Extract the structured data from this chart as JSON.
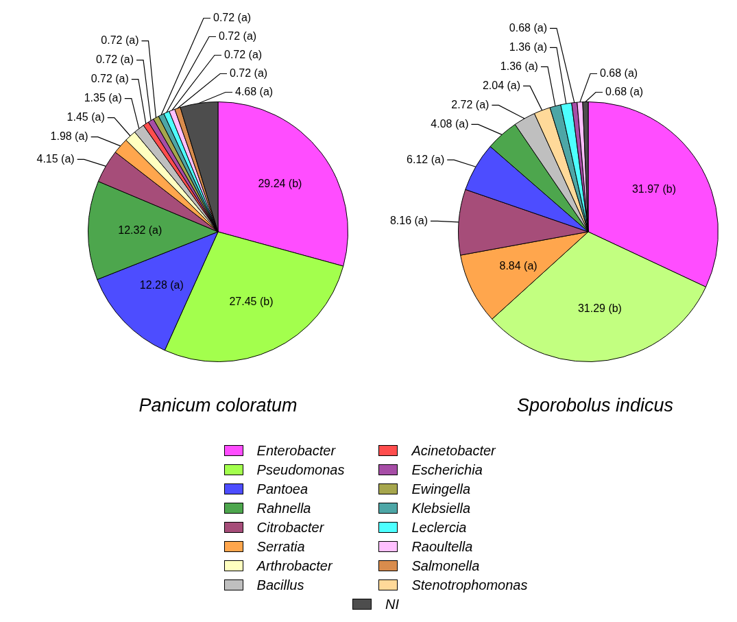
{
  "chart_data": [
    {
      "type": "pie",
      "title": "Panicum coloratum",
      "legend": "bottom",
      "categories": [
        "Enterobacter",
        "Pseudomonas",
        "Pantoea",
        "Rahnella",
        "Citrobacter",
        "Serratia",
        "Arthrobacter",
        "Bacillus",
        "Acinetobacter",
        "Escherichia",
        "Ewingella",
        "Klebsiella",
        "Leclercia",
        "Raoultella",
        "Salmonella",
        "Stenotrophomonas",
        "NI"
      ],
      "values": [
        29.24,
        27.45,
        12.28,
        12.32,
        4.15,
        1.98,
        1.45,
        1.35,
        0.72,
        0.72,
        0.72,
        0.72,
        0.72,
        0.72,
        0.72,
        null,
        4.68
      ],
      "value_labels": [
        "29.24 (b)",
        "27.45 (b)",
        "12.28 (a)",
        "12.32 (a)",
        "4.15 (a)",
        "1.98 (a)",
        "1.45 (a)",
        "1.35 (a)",
        "0.72 (a)",
        "0.72 (a)",
        "0.72 (a)",
        "0.72 (a)",
        "0.72 (a)",
        "0.72 (a)",
        "0.72 (a)",
        null,
        "4.68 (a)"
      ],
      "colors": [
        "#ff4dff",
        "#a3ff4d",
        "#4d4dff",
        "#4da64d",
        "#a64d79",
        "#ffa64d",
        "#ffffc0",
        "#bfbfbf",
        "#ff4d4d",
        "#a64da6",
        "#a6a64d",
        "#4da6a6",
        "#4dffff",
        "#ffc0ff",
        "#d98c4d",
        "#ffd999",
        "#4d4d4d"
      ]
    },
    {
      "type": "pie",
      "title": "Sporobolus indicus",
      "categories": [
        null,
        null,
        null,
        null,
        null,
        null,
        null,
        null,
        null,
        null,
        null,
        null,
        null
      ],
      "values": [
        31.97,
        31.29,
        8.84,
        8.16,
        6.12,
        4.08,
        2.72,
        2.04,
        1.36,
        1.36,
        0.68,
        0.68,
        0.68
      ],
      "value_labels": [
        "31.97 (b)",
        "31.29 (b)",
        "8.84 (a)",
        "8.16 (a)",
        "6.12 (a)",
        "4.08 (a)",
        "2.72 (a)",
        "2.04 (a)",
        "1.36 (a)",
        "1.36 (a)",
        "0.68 (a)",
        "0.68 (a)",
        "0.68 (a)"
      ],
      "colors": [
        "#ff4dff",
        "#c2ff80",
        "#ffa64d",
        "#a64d79",
        "#4d4dff",
        "#4da64d",
        "#bfbfbf",
        "#ffd999",
        "#4da6a6",
        "#4dffff",
        "#a64da6",
        "#ffc0ff",
        "#4d4d4d"
      ]
    }
  ]
}
